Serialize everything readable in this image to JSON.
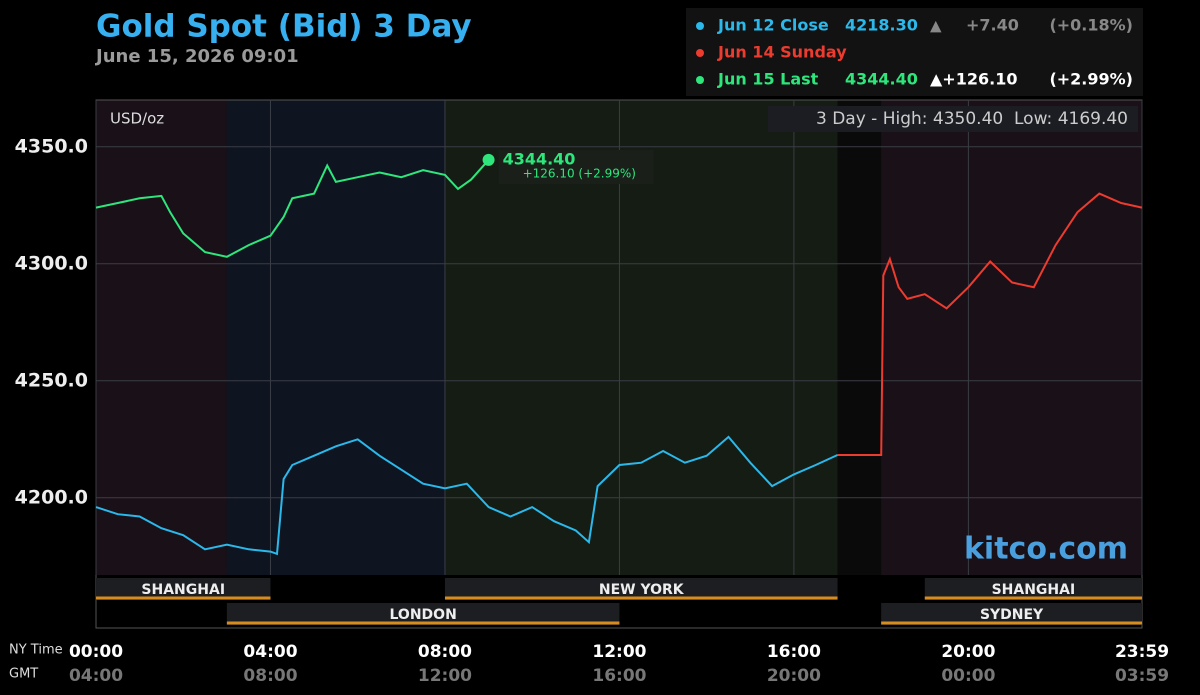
{
  "chart_data": {
    "type": "line",
    "title": "Gold Spot (Bid) 3 Day",
    "subtitle": "June 15, 2026 09:01",
    "y_unit": "USD/oz",
    "range_note": "3 Day - High: 4350.40  Low: 4169.40",
    "watermark": "kitco.com",
    "x_row_labels": [
      "NY Time",
      "GMT"
    ],
    "xlim": [
      0,
      23.98
    ],
    "xticks": [
      {
        "value": 0,
        "label": "00:00"
      },
      {
        "value": 4,
        "label": "04:00"
      },
      {
        "value": 8,
        "label": "08:00"
      },
      {
        "value": 12,
        "label": "12:00"
      },
      {
        "value": 16,
        "label": "16:00"
      },
      {
        "value": 20,
        "label": "20:00"
      },
      {
        "value": 23.98,
        "label": "23:59"
      }
    ],
    "gmt_tick_labels": [
      "04:00",
      "08:00",
      "12:00",
      "16:00",
      "20:00",
      "00:00",
      "03:59"
    ],
    "ylim": [
      4167,
      4370
    ],
    "yticks": [
      {
        "value": 4200,
        "label": "4200.0"
      },
      {
        "value": 4250,
        "label": "4250.0"
      },
      {
        "value": 4300,
        "label": "4300.0"
      },
      {
        "value": 4350,
        "label": "4350.0"
      }
    ],
    "grid": true,
    "series": [
      {
        "name": "Jun 12 Close",
        "color": "#2bb8ea",
        "last": "4218.30",
        "arrow": "▲",
        "change": "+7.40",
        "change_pct": "(+0.18%)",
        "x": [
          0,
          0.5,
          1,
          1.5,
          2,
          2.5,
          3,
          3.5,
          4,
          4.15,
          4.3,
          4.5,
          5,
          5.5,
          6,
          6.5,
          7,
          7.5,
          8,
          8.5,
          9,
          9.5,
          10,
          10.5,
          11,
          11.3,
          11.5,
          12,
          12.5,
          13,
          13.5,
          14,
          14.5,
          15,
          15.5,
          16,
          16.5,
          17
        ],
        "values": [
          4196,
          4193,
          4192,
          4187,
          4184,
          4178,
          4180,
          4178,
          4177,
          4176,
          4208,
          4214,
          4218,
          4222,
          4225,
          4218,
          4212,
          4206,
          4204,
          4206,
          4196,
          4192,
          4196,
          4190,
          4186,
          4181,
          4205,
          4214,
          4215,
          4220,
          4215,
          4218,
          4226,
          4215,
          4205,
          4210,
          4214,
          4218.3
        ]
      },
      {
        "name": "Jun 14 Sunday",
        "color": "#ec3b2f",
        "x": [
          17,
          18,
          18.05,
          18.2,
          18.4,
          18.6,
          19,
          19.5,
          20,
          20.5,
          21,
          21.5,
          22,
          22.5,
          23,
          23.5,
          23.98
        ],
        "values": [
          4218.3,
          4218.3,
          4295,
          4302,
          4290,
          4285,
          4287,
          4281,
          4290,
          4301,
          4292,
          4290,
          4308,
          4322,
          4330,
          4326,
          4324
        ]
      },
      {
        "name": "Jun 15 Last",
        "color": "#2fe67c",
        "last": "4344.40",
        "change": "▲+126.10",
        "change_pct": "(+2.99%)",
        "x": [
          0,
          0.5,
          1,
          1.5,
          1.7,
          2,
          2.5,
          3,
          3.5,
          4,
          4.3,
          4.5,
          5,
          5.3,
          5.5,
          6,
          6.5,
          7,
          7.5,
          8,
          8.3,
          8.6,
          9
        ],
        "values": [
          4324,
          4326,
          4328,
          4329,
          4322,
          4313,
          4305,
          4303,
          4308,
          4312,
          4320,
          4328,
          4330,
          4342,
          4335,
          4337,
          4339,
          4337,
          4340,
          4338,
          4332,
          4336,
          4344.4
        ]
      }
    ],
    "annotation": {
      "price": "4344.40",
      "change": "+126.10 (+2.99%)"
    },
    "sessions": [
      {
        "name": "SHANGHAI",
        "start": 0,
        "end": 4,
        "row": 1
      },
      {
        "name": "LONDON",
        "start": 3,
        "end": 12,
        "row": 2
      },
      {
        "name": "NEW YORK",
        "start": 8,
        "end": 17,
        "row": 1
      },
      {
        "name": "SHANGHAI",
        "start": 19,
        "end": 23.98,
        "row": 1
      },
      {
        "name": "SYDNEY",
        "start": 18,
        "end": 23.98,
        "row": 2
      }
    ]
  }
}
